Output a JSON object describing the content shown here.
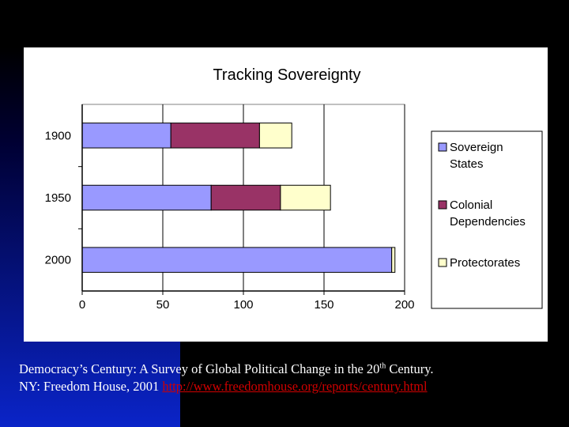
{
  "colors": {
    "sovereign": "#9999ff",
    "colonial": "#993366",
    "protectorates": "#ffffcc",
    "link": "#d00000"
  },
  "chart_data": {
    "type": "bar",
    "orientation": "horizontal",
    "stacked": true,
    "title": "Tracking Sovereignty",
    "categories": [
      "1900",
      "1950",
      "2000"
    ],
    "series": [
      {
        "name": "Sovereign States",
        "legend_lines": [
          "Sovereign",
          "States"
        ],
        "values": [
          55,
          80,
          192
        ]
      },
      {
        "name": "Colonial Dependencies",
        "legend_lines": [
          "Colonial",
          "Dependencies"
        ],
        "values": [
          55,
          43,
          0
        ]
      },
      {
        "name": "Protectorates",
        "legend_lines": [
          "Protectorates"
        ],
        "values": [
          20,
          31,
          2
        ]
      }
    ],
    "xlim": [
      0,
      200
    ],
    "xticks": [
      "0",
      "50",
      "100",
      "150",
      "200"
    ],
    "xlabel": "",
    "ylabel": "",
    "grid": "vertical",
    "legend_position": "right"
  },
  "caption": {
    "line1_before_sup": "Democracy’s Century: A Survey of Global Political Change in the 20",
    "line1_sup": "th",
    "line1_after_sup": " Century.",
    "line2_text": "NY: Freedom House, 2001 ",
    "line2_link": "http://www.freedomhouse.org/reports/century.html"
  }
}
